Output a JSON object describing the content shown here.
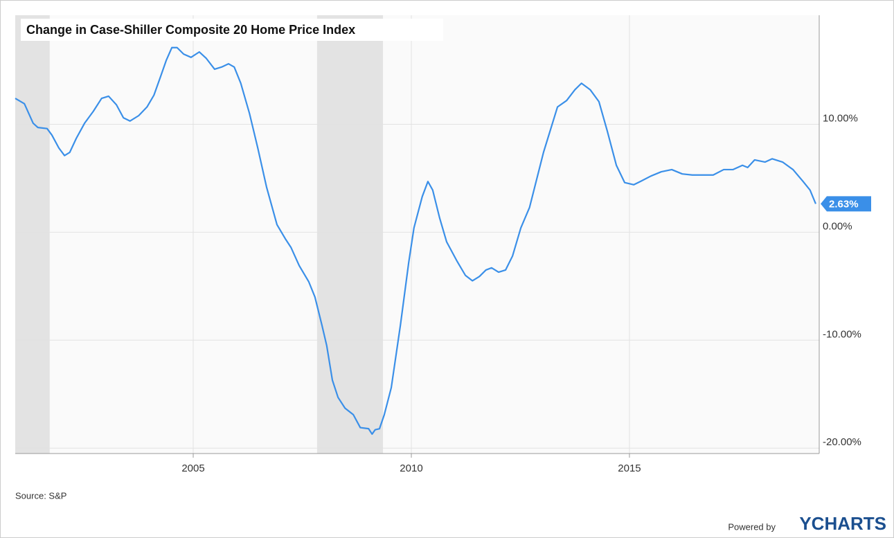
{
  "chart_data": {
    "type": "line",
    "title": "Change in Case-Shiller Composite 20 Home Price Index",
    "source": "Source: S&P",
    "branding": {
      "prefix": "Powered by",
      "name": "YCHARTS"
    },
    "xlim": [
      2000.92,
      2019.35
    ],
    "xticks": [
      2005,
      2010,
      2015
    ],
    "ylim": [
      -20.5,
      20.1
    ],
    "yticks": [
      {
        "value": 10,
        "label": "10.00%"
      },
      {
        "value": 0,
        "label": "0.00%"
      },
      {
        "value": -10,
        "label": "-10.00%"
      },
      {
        "value": -20,
        "label": "-20.00%"
      }
    ],
    "grid": true,
    "shaded_ranges": [
      [
        2000.92,
        2001.71
      ],
      [
        2007.84,
        2009.35
      ]
    ],
    "shade_color": "#e3e3e3",
    "x": [
      2000.92,
      2001.13,
      2001.33,
      2001.44,
      2001.65,
      2001.76,
      2001.92,
      2002.05,
      2002.17,
      2002.32,
      2002.51,
      2002.71,
      2002.9,
      2003.06,
      2003.24,
      2003.4,
      2003.55,
      2003.75,
      2003.94,
      2004.1,
      2004.25,
      2004.38,
      2004.51,
      2004.63,
      2004.78,
      2004.95,
      2005.14,
      2005.3,
      2005.49,
      2005.65,
      2005.81,
      2005.94,
      2006.09,
      2006.29,
      2006.48,
      2006.68,
      2006.92,
      2007.11,
      2007.24,
      2007.43,
      2007.65,
      2007.79,
      2007.95,
      2008.06,
      2008.19,
      2008.32,
      2008.48,
      2008.67,
      2008.83,
      2009.02,
      2009.1,
      2009.17,
      2009.27,
      2009.38,
      2009.54,
      2009.75,
      2009.94,
      2010.06,
      2010.25,
      2010.38,
      2010.49,
      2010.65,
      2010.81,
      2011.05,
      2011.24,
      2011.4,
      2011.56,
      2011.71,
      2011.84,
      2012.0,
      2012.16,
      2012.32,
      2012.51,
      2012.71,
      2013.03,
      2013.35,
      2013.56,
      2013.75,
      2013.9,
      2014.1,
      2014.3,
      2014.49,
      2014.7,
      2014.89,
      2015.1,
      2015.25,
      2015.49,
      2015.73,
      2015.97,
      2016.21,
      2016.44,
      2016.68,
      2016.92,
      2017.16,
      2017.37,
      2017.59,
      2017.71,
      2017.87,
      2018.11,
      2018.27,
      2018.51,
      2018.75,
      2018.98,
      2019.14,
      2019.27
    ],
    "series": [
      {
        "name": "Case-Shiller Composite 20 Home Price Index",
        "color": "#3a8fe8",
        "end_label": "2.63%",
        "values": [
          12.4,
          11.9,
          10.1,
          9.7,
          9.6,
          9.0,
          7.8,
          7.1,
          7.4,
          8.7,
          10.1,
          11.2,
          12.4,
          12.6,
          11.8,
          10.6,
          10.3,
          10.8,
          11.6,
          12.7,
          14.4,
          15.9,
          17.1,
          17.1,
          16.5,
          16.2,
          16.7,
          16.1,
          15.1,
          15.3,
          15.6,
          15.3,
          13.8,
          11.0,
          7.8,
          4.2,
          0.7,
          -0.6,
          -1.4,
          -3.1,
          -4.6,
          -6.0,
          -8.6,
          -10.5,
          -13.7,
          -15.3,
          -16.3,
          -16.9,
          -18.1,
          -18.2,
          -18.7,
          -18.3,
          -18.2,
          -16.9,
          -14.4,
          -8.6,
          -2.8,
          0.4,
          3.3,
          4.7,
          3.9,
          1.3,
          -0.9,
          -2.7,
          -4.0,
          -4.5,
          -4.1,
          -3.5,
          -3.3,
          -3.7,
          -3.5,
          -2.2,
          0.4,
          2.3,
          7.4,
          11.6,
          12.2,
          13.2,
          13.8,
          13.2,
          12.1,
          9.4,
          6.2,
          4.6,
          4.4,
          4.7,
          5.2,
          5.6,
          5.8,
          5.4,
          5.3,
          5.3,
          5.3,
          5.8,
          5.8,
          6.2,
          6.0,
          6.7,
          6.5,
          6.8,
          6.5,
          5.8,
          4.7,
          3.9,
          2.63
        ]
      }
    ]
  }
}
